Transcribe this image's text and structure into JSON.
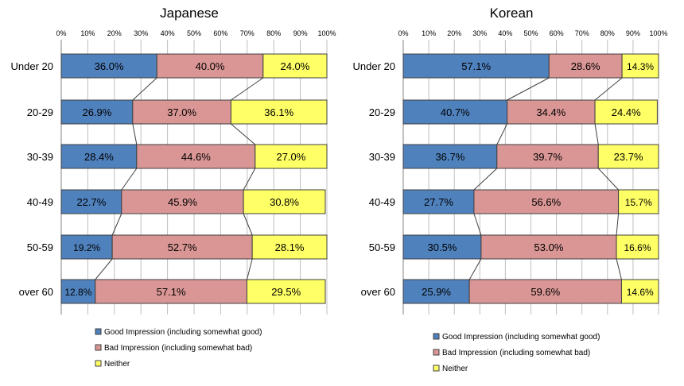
{
  "chart_data": [
    {
      "type": "bar",
      "stacked": true,
      "orientation": "horizontal",
      "title": "Japanese",
      "xlim": [
        0,
        100
      ],
      "x_ticks": [
        "0%",
        "10%",
        "20%",
        "30%",
        "40%",
        "50%",
        "60%",
        "70%",
        "80%",
        "90%",
        "100%"
      ],
      "categories": [
        "Under 20",
        "20-29",
        "30-39",
        "40-49",
        "50-59",
        "over 60"
      ],
      "series": [
        {
          "name": "Good Impression (including somewhat good)",
          "color": "#4f81bd",
          "values": [
            36.0,
            26.9,
            28.4,
            22.7,
            19.2,
            12.8
          ],
          "labels": [
            "36.0%",
            "26.9%",
            "28.4%",
            "22.7%",
            "19.2%",
            "12.8%"
          ]
        },
        {
          "name": "Bad Impression (including somewhat bad)",
          "color": "#d99694",
          "values": [
            40.0,
            37.0,
            44.6,
            45.9,
            52.7,
            57.1
          ],
          "labels": [
            "40.0%",
            "37.0%",
            "44.6%",
            "45.9%",
            "52.7%",
            "57.1%"
          ]
        },
        {
          "name": "Neither",
          "color": "#ffff66",
          "values": [
            24.0,
            36.1,
            27.0,
            30.8,
            28.1,
            29.5
          ],
          "labels": [
            "24.0%",
            "36.1%",
            "27.0%",
            "30.8%",
            "28.1%",
            "29.5%"
          ]
        }
      ],
      "legend": [
        "Good Impression (including somewhat good)",
        "Bad Impression (including somewhat bad)",
        "Neither"
      ]
    },
    {
      "type": "bar",
      "stacked": true,
      "orientation": "horizontal",
      "title": "Korean",
      "xlim": [
        0,
        100
      ],
      "x_ticks": [
        "0%",
        "10%",
        "20%",
        "30%",
        "40%",
        "50%",
        "60%",
        "70%",
        "80%",
        "90%",
        "100%"
      ],
      "categories": [
        "Under 20",
        "20-29",
        "30-39",
        "40-49",
        "50-59",
        "over 60"
      ],
      "series": [
        {
          "name": "Good Impression (including somewhat good)",
          "color": "#4f81bd",
          "values": [
            57.1,
            40.7,
            36.7,
            27.7,
            30.5,
            25.9
          ],
          "labels": [
            "57.1%",
            "40.7%",
            "36.7%",
            "27.7%",
            "30.5%",
            "25.9%"
          ]
        },
        {
          "name": "Bad Impression (including somewhat bad)",
          "color": "#d99694",
          "values": [
            28.6,
            34.4,
            39.7,
            56.6,
            53.0,
            59.6
          ],
          "labels": [
            "28.6%",
            "34.4%",
            "39.7%",
            "56.6%",
            "53.0%",
            "59.6%"
          ]
        },
        {
          "name": "Neither",
          "color": "#ffff66",
          "values": [
            14.3,
            24.4,
            23.7,
            15.7,
            16.6,
            14.6
          ],
          "labels": [
            "14.3%",
            "24.4%",
            "23.7%",
            "15.7%",
            "16.6%",
            "14.6%"
          ]
        }
      ],
      "legend": [
        "Good Impression (including somewhat good)",
        "Bad Impression (including somewhat bad)",
        "Neither"
      ]
    }
  ]
}
